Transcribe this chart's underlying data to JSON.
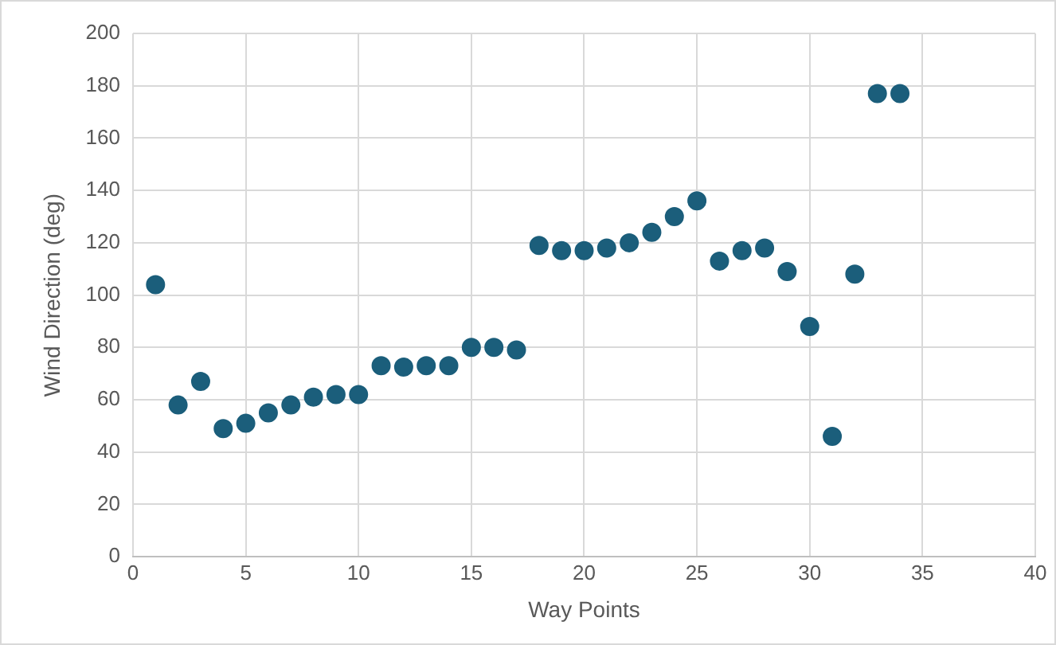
{
  "chart_data": {
    "type": "scatter",
    "xlabel": "Way Points",
    "ylabel": "Wind Direction (deg)",
    "x": [
      1,
      2,
      3,
      4,
      5,
      6,
      7,
      8,
      9,
      10,
      11,
      12,
      13,
      14,
      15,
      16,
      17,
      18,
      19,
      20,
      21,
      22,
      23,
      24,
      25,
      26,
      27,
      28,
      29,
      30,
      31,
      32,
      33,
      34
    ],
    "series": [
      {
        "color": "#1b5e7b",
        "values": [
          104,
          58,
          67,
          49,
          51,
          55,
          58,
          61,
          62,
          62,
          73,
          72.5,
          73,
          73,
          80,
          80,
          79,
          119,
          117,
          117,
          118,
          120,
          124,
          130,
          136,
          113,
          117,
          118,
          109,
          88,
          46,
          108,
          177,
          177
        ]
      }
    ],
    "xlim": [
      0,
      40
    ],
    "xticks": [
      0,
      5,
      10,
      15,
      20,
      25,
      30,
      35,
      40
    ],
    "ylim": [
      0,
      200
    ],
    "yticks": [
      0,
      20,
      40,
      60,
      80,
      100,
      120,
      140,
      160,
      180,
      200
    ],
    "grid": true,
    "legend": false,
    "marker": "circle"
  }
}
